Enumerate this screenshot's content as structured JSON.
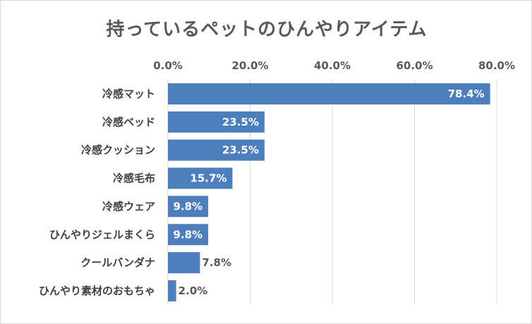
{
  "chart_data": {
    "type": "bar",
    "orientation": "horizontal",
    "title": "持っているペットのひんやりアイテム",
    "categories": [
      "冷感マット",
      "冷感ベッド",
      "冷感クッション",
      "冷感毛布",
      "冷感ウェア",
      "ひんやりジェルまくら",
      "クールバンダナ",
      "ひんやり素材のおもちゃ"
    ],
    "values": [
      78.4,
      23.5,
      23.5,
      15.7,
      9.8,
      9.8,
      7.8,
      2.0
    ],
    "data_labels": [
      "78.4%",
      "23.5%",
      "23.5%",
      "15.7%",
      "9.8%",
      "9.8%",
      "7.8%",
      "2.0%"
    ],
    "xlim": [
      0,
      80
    ],
    "x_ticks": [
      "0.0%",
      "20.0%",
      "40.0%",
      "60.0%",
      "80.0%"
    ],
    "x_axis_position": "top",
    "grid": true,
    "legend": "none",
    "colors": {
      "bar": "#4e7fbd",
      "grid": "#d9d9d9",
      "text": "#595959"
    }
  }
}
